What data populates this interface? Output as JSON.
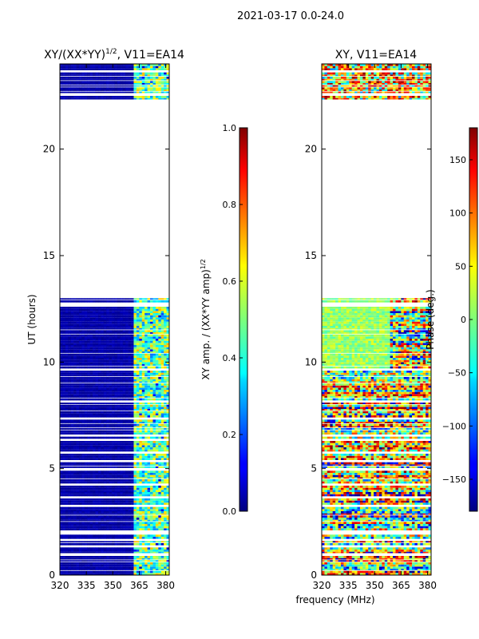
{
  "suptitle": "2021-03-17 0.0-24.0",
  "chart_data": [
    {
      "type": "heatmap",
      "id": "amp",
      "title": "XY/(XX*YY)",
      "title_sup": "1/2",
      "title_suffix": ", V11=EA14",
      "xlabel": "",
      "ylabel": "UT (hours)",
      "xlim": [
        320,
        382
      ],
      "ylim": [
        0,
        24
      ],
      "xticks": [
        320,
        335,
        350,
        365,
        380
      ],
      "yticks": [
        0,
        5,
        10,
        15,
        20
      ],
      "data_gap_hours": [
        13.0,
        22.3
      ],
      "colorbar": {
        "label": "XY amp. / (XX*YY amp)",
        "label_sup": "1/2",
        "range": [
          0.0,
          1.0
        ],
        "ticks": [
          "0.0",
          "0.2",
          "0.4",
          "0.6",
          "0.8",
          "1.0"
        ],
        "colormap": "jet"
      }
    },
    {
      "type": "heatmap",
      "id": "phase",
      "title": "XY, V11=EA14",
      "xlabel": "frequency (MHz)",
      "ylabel": "",
      "xlim": [
        320,
        382
      ],
      "ylim": [
        0,
        24
      ],
      "xticks": [
        320,
        335,
        350,
        365,
        380
      ],
      "yticks": [
        0,
        5,
        10,
        15,
        20
      ],
      "data_gap_hours": [
        13.0,
        22.3
      ],
      "colorbar": {
        "label": "Phase (deg.)",
        "range": [
          -180,
          180
        ],
        "ticks": [
          "−150",
          "−100",
          "−50",
          "0",
          "50",
          "100",
          "150"
        ],
        "colormap": "jet"
      }
    }
  ]
}
